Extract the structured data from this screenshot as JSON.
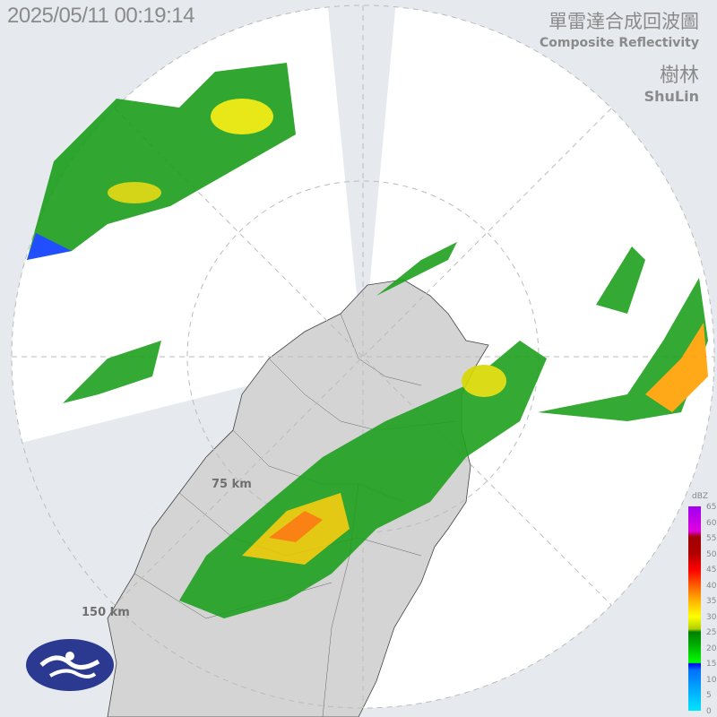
{
  "timestamp": "2025/05/11 00:19:14",
  "title_zh": "單雷達合成回波圖",
  "title_en": "Composite Reflectivity",
  "station_zh": "樹林",
  "station_en": "ShuLin",
  "range_rings": [
    "75 km",
    "150 km"
  ],
  "colorbar": {
    "unit": "dBZ",
    "ticks": [
      "65",
      "60",
      "55",
      "50",
      "45",
      "40",
      "35",
      "30",
      "25",
      "20",
      "15",
      "10",
      "5",
      "0"
    ]
  },
  "logo": "cwa-logo-icon",
  "colors": {
    "background": "#e6eaee",
    "radar_coverage": "#ffffff",
    "land": "#d6d6d6",
    "text": "#8a8a8a"
  }
}
